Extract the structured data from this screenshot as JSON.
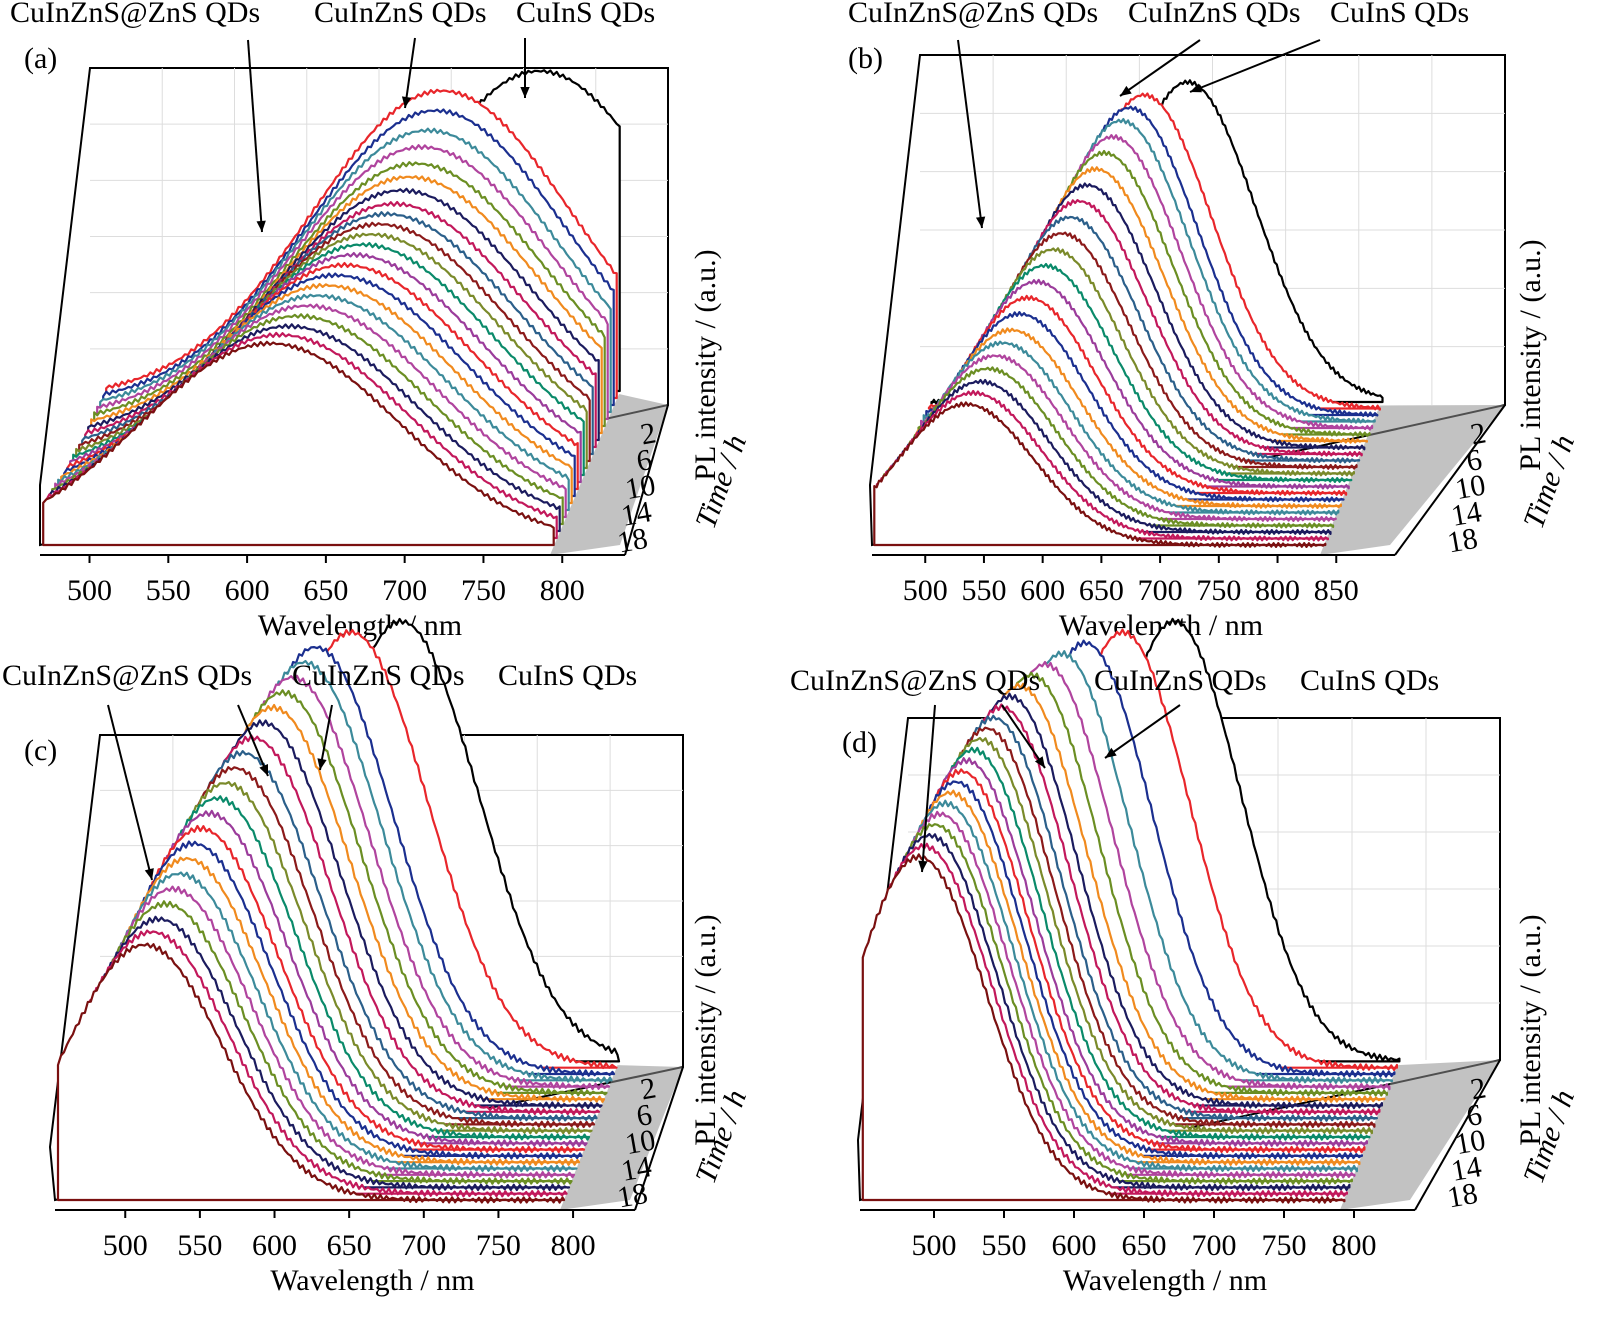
{
  "figure": {
    "x_label": "Wavelength / nm",
    "y_label": "PL intensity / (a.u.)",
    "depth_label": "Time / h"
  },
  "chart_data": [
    {
      "type": "line",
      "panel_label": "(a)",
      "xlabel": "Wavelength / nm",
      "ylabel": "PL intensity / (a.u.)",
      "zlabel": "Time / h",
      "xlim": [
        480,
        810
      ],
      "x_ticks": [
        500,
        550,
        600,
        650,
        700,
        750,
        800
      ],
      "z_ticks": [
        2,
        6,
        10,
        14,
        18
      ],
      "grid": true,
      "annotations": [
        "CuInZnS@ZnS QDs",
        "CuInZnS QDs",
        "CuInS QDs"
      ],
      "series": [
        {
          "time": 0,
          "peak": 755,
          "sigma": 82,
          "height": 1.0,
          "start": 480,
          "end": 800
        },
        {
          "time": 1,
          "peak": 695,
          "sigma": 82,
          "height": 0.96,
          "start": 480,
          "end": 800
        },
        {
          "time": 2,
          "peak": 693,
          "sigma": 82,
          "height": 0.92
        },
        {
          "time": 3,
          "peak": 690,
          "sigma": 82,
          "height": 0.88
        },
        {
          "time": 4,
          "peak": 688,
          "sigma": 82,
          "height": 0.85
        },
        {
          "time": 5,
          "peak": 686,
          "sigma": 82,
          "height": 0.82
        },
        {
          "time": 6,
          "peak": 684,
          "sigma": 82,
          "height": 0.8
        },
        {
          "time": 7,
          "peak": 681,
          "sigma": 82,
          "height": 0.78
        },
        {
          "time": 8,
          "peak": 678,
          "sigma": 82,
          "height": 0.76
        },
        {
          "time": 9,
          "peak": 675,
          "sigma": 82,
          "height": 0.75
        },
        {
          "time": 10,
          "peak": 672,
          "sigma": 82,
          "height": 0.74
        },
        {
          "time": 11,
          "peak": 669,
          "sigma": 82,
          "height": 0.73
        },
        {
          "time": 12,
          "peak": 666,
          "sigma": 82,
          "height": 0.72
        },
        {
          "time": 13,
          "peak": 662,
          "sigma": 82,
          "height": 0.71
        },
        {
          "time": 14,
          "peak": 658,
          "sigma": 82,
          "height": 0.7
        },
        {
          "time": 15,
          "peak": 654,
          "sigma": 82,
          "height": 0.69
        },
        {
          "time": 16,
          "peak": 650,
          "sigma": 82,
          "height": 0.68
        },
        {
          "time": 17,
          "peak": 646,
          "sigma": 82,
          "height": 0.67
        },
        {
          "time": 18,
          "peak": 642,
          "sigma": 82,
          "height": 0.66
        },
        {
          "time": 19,
          "peak": 638,
          "sigma": 82,
          "height": 0.65
        },
        {
          "time": 20,
          "peak": 634,
          "sigma": 82,
          "height": 0.64
        },
        {
          "time": 21,
          "peak": 630,
          "sigma": 82,
          "height": 0.635
        },
        {
          "time": 22,
          "peak": 626,
          "sigma": 82,
          "height": 0.63
        }
      ]
    },
    {
      "type": "line",
      "panel_label": "(b)",
      "xlabel": "Wavelength / nm",
      "ylabel": "PL intensity / (a.u.)",
      "zlabel": "Time / h",
      "xlim": [
        470,
        860
      ],
      "x_ticks": [
        500,
        550,
        600,
        650,
        700,
        750,
        800,
        850
      ],
      "z_ticks": [
        2,
        6,
        10,
        14,
        18
      ],
      "grid": true,
      "annotations": [
        "CuInZnS@ZnS QDs",
        "CuInZnS QDs",
        "CuInS QDs"
      ],
      "series": [
        {
          "time": 0,
          "peak": 690,
          "sigma": 58,
          "height": 1.0
        },
        {
          "time": 1,
          "peak": 655,
          "sigma": 58,
          "height": 0.98
        },
        {
          "time": 2,
          "peak": 645,
          "sigma": 58,
          "height": 0.96
        },
        {
          "time": 3,
          "peak": 640,
          "sigma": 58,
          "height": 0.94
        },
        {
          "time": 4,
          "peak": 635,
          "sigma": 58,
          "height": 0.91
        },
        {
          "time": 5,
          "peak": 630,
          "sigma": 58,
          "height": 0.88
        },
        {
          "time": 6,
          "peak": 625,
          "sigma": 58,
          "height": 0.85
        },
        {
          "time": 7,
          "peak": 620,
          "sigma": 58,
          "height": 0.82
        },
        {
          "time": 8,
          "peak": 615,
          "sigma": 58,
          "height": 0.79
        },
        {
          "time": 9,
          "peak": 610,
          "sigma": 58,
          "height": 0.76
        },
        {
          "time": 10,
          "peak": 605,
          "sigma": 58,
          "height": 0.73
        },
        {
          "time": 11,
          "peak": 600,
          "sigma": 58,
          "height": 0.7
        },
        {
          "time": 12,
          "peak": 595,
          "sigma": 58,
          "height": 0.67
        },
        {
          "time": 13,
          "peak": 590,
          "sigma": 58,
          "height": 0.64
        },
        {
          "time": 14,
          "peak": 585,
          "sigma": 58,
          "height": 0.61
        },
        {
          "time": 15,
          "peak": 580,
          "sigma": 58,
          "height": 0.58
        },
        {
          "time": 16,
          "peak": 575,
          "sigma": 58,
          "height": 0.55
        },
        {
          "time": 17,
          "peak": 570,
          "sigma": 58,
          "height": 0.53
        },
        {
          "time": 18,
          "peak": 566,
          "sigma": 58,
          "height": 0.51
        },
        {
          "time": 19,
          "peak": 562,
          "sigma": 58,
          "height": 0.49
        },
        {
          "time": 20,
          "peak": 558,
          "sigma": 58,
          "height": 0.47
        },
        {
          "time": 21,
          "peak": 554,
          "sigma": 58,
          "height": 0.455
        },
        {
          "time": 22,
          "peak": 550,
          "sigma": 58,
          "height": 0.44
        }
      ]
    },
    {
      "type": "line",
      "panel_label": "(c)",
      "xlabel": "Wavelength / nm",
      "ylabel": "PL intensity / (a.u.)",
      "zlabel": "Time / h",
      "xlim": [
        465,
        810
      ],
      "x_ticks": [
        500,
        550,
        600,
        650,
        700,
        750,
        800
      ],
      "z_ticks": [
        2,
        6,
        10,
        14,
        18
      ],
      "grid": true,
      "annotations": [
        "CuInZnS@ZnS QDs",
        "CuInZnS QDs",
        "CuInS QDs"
      ],
      "series": [
        {
          "time": 0,
          "peak": 660,
          "sigma": 52,
          "height": 1.0
        },
        {
          "time": 1,
          "peak": 628,
          "sigma": 52,
          "height": 0.99
        },
        {
          "time": 2,
          "peak": 606,
          "sigma": 52,
          "height": 0.97
        },
        {
          "time": 3,
          "peak": 600,
          "sigma": 52,
          "height": 0.95
        },
        {
          "time": 4,
          "peak": 594,
          "sigma": 52,
          "height": 0.93
        },
        {
          "time": 5,
          "peak": 589,
          "sigma": 52,
          "height": 0.91
        },
        {
          "time": 6,
          "peak": 584,
          "sigma": 52,
          "height": 0.89
        },
        {
          "time": 7,
          "peak": 579,
          "sigma": 52,
          "height": 0.87
        },
        {
          "time": 8,
          "peak": 574,
          "sigma": 52,
          "height": 0.85
        },
        {
          "time": 9,
          "peak": 569,
          "sigma": 52,
          "height": 0.83
        },
        {
          "time": 10,
          "peak": 565,
          "sigma": 52,
          "height": 0.81
        },
        {
          "time": 11,
          "peak": 561,
          "sigma": 52,
          "height": 0.79
        },
        {
          "time": 12,
          "peak": 557,
          "sigma": 52,
          "height": 0.77
        },
        {
          "time": 13,
          "peak": 553,
          "sigma": 52,
          "height": 0.75
        },
        {
          "time": 14,
          "peak": 549,
          "sigma": 52,
          "height": 0.73
        },
        {
          "time": 15,
          "peak": 546,
          "sigma": 52,
          "height": 0.71
        },
        {
          "time": 16,
          "peak": 543,
          "sigma": 52,
          "height": 0.69
        },
        {
          "time": 17,
          "peak": 540,
          "sigma": 52,
          "height": 0.67
        },
        {
          "time": 18,
          "peak": 537,
          "sigma": 52,
          "height": 0.65
        },
        {
          "time": 19,
          "peak": 534,
          "sigma": 52,
          "height": 0.63
        },
        {
          "time": 20,
          "peak": 531,
          "sigma": 52,
          "height": 0.61
        },
        {
          "time": 21,
          "peak": 528,
          "sigma": 52,
          "height": 0.595
        },
        {
          "time": 22,
          "peak": 525,
          "sigma": 52,
          "height": 0.58
        }
      ]
    },
    {
      "type": "line",
      "panel_label": "(d)",
      "xlabel": "Wavelength / nm",
      "ylabel": "PL intensity / (a.u.)",
      "zlabel": "Time / h",
      "xlim": [
        460,
        810
      ],
      "x_ticks": [
        500,
        550,
        600,
        650,
        700,
        750,
        800
      ],
      "z_ticks": [
        2,
        6,
        10,
        14,
        18
      ],
      "grid": true,
      "annotations": [
        "CuInZnS@ZnS QDs",
        "CuInZnS QDs",
        "CuInS QDs"
      ],
      "series": [
        {
          "time": 0,
          "peak": 645,
          "sigma": 48,
          "height": 1.0
        },
        {
          "time": 1,
          "peak": 610,
          "sigma": 48,
          "height": 0.99
        },
        {
          "time": 2,
          "peak": 585,
          "sigma": 48,
          "height": 0.98
        },
        {
          "time": 3,
          "peak": 570,
          "sigma": 48,
          "height": 0.97
        },
        {
          "time": 4,
          "peak": 560,
          "sigma": 48,
          "height": 0.96
        },
        {
          "time": 5,
          "peak": 552,
          "sigma": 48,
          "height": 0.95
        },
        {
          "time": 6,
          "peak": 545,
          "sigma": 48,
          "height": 0.94
        },
        {
          "time": 7,
          "peak": 540,
          "sigma": 48,
          "height": 0.93
        },
        {
          "time": 8,
          "peak": 536,
          "sigma": 48,
          "height": 0.92
        },
        {
          "time": 9,
          "peak": 532,
          "sigma": 48,
          "height": 0.91
        },
        {
          "time": 10,
          "peak": 529,
          "sigma": 48,
          "height": 0.9
        },
        {
          "time": 11,
          "peak": 526,
          "sigma": 48,
          "height": 0.89
        },
        {
          "time": 12,
          "peak": 523,
          "sigma": 48,
          "height": 0.88
        },
        {
          "time": 13,
          "peak": 520,
          "sigma": 48,
          "height": 0.87
        },
        {
          "time": 14,
          "peak": 518,
          "sigma": 48,
          "height": 0.86
        },
        {
          "time": 15,
          "peak": 516,
          "sigma": 48,
          "height": 0.85
        },
        {
          "time": 16,
          "peak": 514,
          "sigma": 48,
          "height": 0.84
        },
        {
          "time": 17,
          "peak": 512,
          "sigma": 48,
          "height": 0.83
        },
        {
          "time": 18,
          "peak": 510,
          "sigma": 48,
          "height": 0.82
        },
        {
          "time": 19,
          "peak": 508,
          "sigma": 48,
          "height": 0.81
        },
        {
          "time": 20,
          "peak": 506,
          "sigma": 48,
          "height": 0.8
        },
        {
          "time": 21,
          "peak": 504,
          "sigma": 48,
          "height": 0.79
        },
        {
          "time": 22,
          "peak": 502,
          "sigma": 48,
          "height": 0.78
        }
      ]
    }
  ],
  "series_colors": [
    "#000000",
    "#e8262b",
    "#1b2f8f",
    "#3c8a9a",
    "#b0449e",
    "#6b8e23",
    "#f08a1e",
    "#1b1b5e",
    "#c2185b",
    "#2b5f8a",
    "#8b1a1a",
    "#7a8a2a",
    "#0a8a6a",
    "#9b3c9b",
    "#e8262b",
    "#1b2f8f",
    "#f08a1e",
    "#3c8a9a",
    "#b0449e",
    "#6b8e23",
    "#1b1b5e",
    "#c2185b",
    "#7a1010"
  ]
}
